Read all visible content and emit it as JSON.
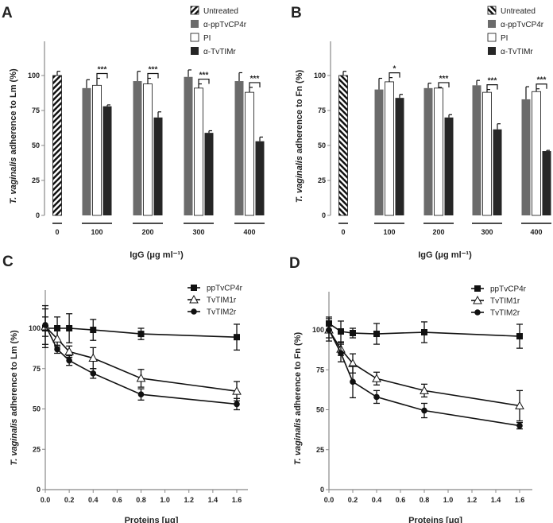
{
  "chart_data": [
    {
      "panel": "A",
      "type": "bar",
      "ylabel_italic": "T. vaginalis",
      "ylabel_rest": " adherence to Lm (%)",
      "xlabel": "IgG (μg ml⁻¹)",
      "ylim": [
        0,
        125
      ],
      "yticks": [
        0,
        25,
        50,
        75,
        100
      ],
      "legend": [
        "Untreated",
        "α-ppTvCP4r",
        "PI",
        "α-TvTIMr"
      ],
      "legend_position": "top-right",
      "untreated": {
        "category": "0",
        "value": 100,
        "error": 3
      },
      "categories": [
        "100",
        "200",
        "300",
        "400"
      ],
      "series": [
        {
          "name": "α-ppTvCP4r",
          "values": [
            91,
            96,
            99,
            96
          ],
          "errors": [
            6,
            7,
            5,
            6
          ]
        },
        {
          "name": "PI",
          "values": [
            93,
            94,
            91,
            88
          ],
          "errors": [
            5,
            4,
            3,
            3.5
          ]
        },
        {
          "name": "α-TvTIMr",
          "values": [
            78,
            70,
            59,
            53
          ],
          "errors": [
            1,
            4,
            1.5,
            3
          ]
        }
      ],
      "significance": [
        "***",
        "***",
        "***",
        "***"
      ]
    },
    {
      "panel": "B",
      "type": "bar",
      "ylabel_italic": "T. vaginalis",
      "ylabel_rest": "  adherence to Fn (%)",
      "xlabel": "IgG (μg ml⁻¹)",
      "ylim": [
        0,
        125
      ],
      "yticks": [
        0,
        25,
        50,
        75,
        100
      ],
      "legend": [
        "Untreated",
        "α-ppTvCP4r",
        "PI",
        "α-TvTIMr"
      ],
      "legend_position": "top-right",
      "untreated": {
        "category": "0",
        "value": 100,
        "error": 3
      },
      "categories": [
        "100",
        "200",
        "300",
        "400"
      ],
      "series": [
        {
          "name": "α-ppTvCP4r",
          "values": [
            90,
            91,
            93,
            83
          ],
          "errors": [
            8,
            3.5,
            3.5,
            9
          ]
        },
        {
          "name": "PI",
          "values": [
            95.5,
            91,
            88,
            88.5
          ],
          "errors": [
            3,
            0.5,
            2,
            2
          ]
        },
        {
          "name": "α-TvTIMr",
          "values": [
            84,
            70,
            61.5,
            46
          ],
          "errors": [
            2.5,
            2,
            4,
            0.5
          ]
        }
      ],
      "significance": [
        "*",
        "***",
        "***",
        "***"
      ]
    },
    {
      "panel": "C",
      "type": "line",
      "ylabel_italic": "T. vaginalis",
      "ylabel_rest": " adherence to Lm (%)",
      "xlabel": "Proteins [μg]",
      "xlim": [
        0,
        1.6
      ],
      "ylim": [
        0,
        125
      ],
      "xticks": [
        "0.0",
        "0.2",
        "0.4",
        "0.6",
        "0.8",
        "1.0",
        "1.2",
        "1.4",
        "1.6"
      ],
      "yticks": [
        0,
        25,
        50,
        75,
        100
      ],
      "legend_position": "top-right",
      "x": [
        0,
        0.1,
        0.2,
        0.4,
        0.8,
        1.6
      ],
      "series": [
        {
          "name": "ppTvCP4r",
          "marker": "square",
          "values": [
            100,
            100,
            100,
            99,
            96.5,
            94.5
          ],
          "errors": [
            12,
            7,
            9,
            6.5,
            3.5,
            8
          ]
        },
        {
          "name": "TvTIM1r",
          "marker": "triangle-open",
          "values": [
            101,
            93.5,
            85.5,
            81.5,
            69,
            61
          ],
          "errors": [
            6,
            5,
            3.5,
            6.5,
            5.5,
            6
          ]
        },
        {
          "name": "TvTIM2r",
          "marker": "circle",
          "values": [
            102,
            87,
            80,
            72,
            59,
            53
          ],
          "errors": [
            12,
            2.5,
            3,
            3,
            3.5,
            3.5
          ]
        }
      ]
    },
    {
      "panel": "D",
      "type": "line",
      "ylabel_italic": "T. vaginalis",
      "ylabel_rest": " adherence to Fn (%)",
      "xlabel": "Proteins [μg]",
      "xlim": [
        0,
        1.6
      ],
      "ylim": [
        0,
        125
      ],
      "xticks": [
        "0.0",
        "0.2",
        "0.4",
        "0.6",
        "0.8",
        "1.0",
        "1.2",
        "1.4",
        "1.6"
      ],
      "yticks": [
        0,
        25,
        50,
        75,
        100
      ],
      "legend_position": "top-right",
      "x": [
        0,
        0.1,
        0.2,
        0.4,
        0.8,
        1.6
      ],
      "series": [
        {
          "name": "ppTvCP4r",
          "marker": "square",
          "values": [
            104,
            99,
            98,
            97.5,
            98.5,
            96
          ],
          "errors": [
            4,
            6.5,
            3,
            6.5,
            6.5,
            7.5
          ]
        },
        {
          "name": "TvTIM1r",
          "marker": "triangle-open",
          "values": [
            100,
            88,
            79,
            69.5,
            62,
            52.5
          ],
          "errors": [
            5,
            4,
            6,
            4,
            4,
            9.5
          ]
        },
        {
          "name": "TvTIM2r",
          "marker": "circle",
          "values": [
            100,
            85.5,
            67.5,
            58,
            49.5,
            40
          ],
          "errors": [
            7,
            5.5,
            10,
            4,
            4.5,
            2
          ]
        }
      ]
    }
  ],
  "colors": {
    "cp4": "#6b6b6b",
    "pi": "#ffffff",
    "tim": "#262626",
    "axis": "#888888",
    "ink": "#111111"
  }
}
